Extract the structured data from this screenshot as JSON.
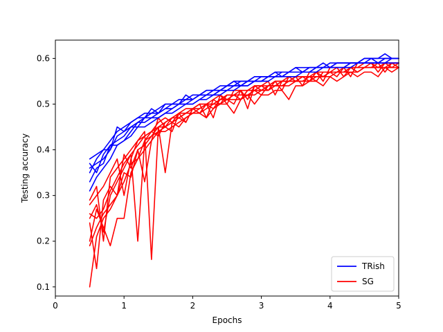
{
  "chart_data": {
    "type": "line",
    "title": "",
    "xlabel": "Epochs",
    "ylabel": "Testing accuracy",
    "xlim": [
      0,
      5
    ],
    "ylim": [
      0.08,
      0.64
    ],
    "xticks": [
      0,
      1,
      2,
      3,
      4,
      5
    ],
    "yticks": [
      0.1,
      0.2,
      0.3,
      0.4,
      0.5,
      0.6
    ],
    "grid": false,
    "legend_position": "bottom-right",
    "x": [
      0.5,
      0.6,
      0.7,
      0.8,
      0.9,
      1.0,
      1.1,
      1.2,
      1.3,
      1.4,
      1.5,
      1.6,
      1.7,
      1.8,
      1.9,
      2.0,
      2.1,
      2.2,
      2.3,
      2.4,
      2.5,
      2.6,
      2.7,
      2.8,
      2.9,
      3.0,
      3.1,
      3.2,
      3.3,
      3.4,
      3.5,
      3.6,
      3.7,
      3.8,
      3.9,
      4.0,
      4.1,
      4.2,
      4.3,
      4.4,
      4.5,
      4.6,
      4.7,
      4.8,
      4.9,
      5.0
    ],
    "series": [
      {
        "name": "TRish",
        "color": "#0000ff",
        "values": [
          0.37,
          0.35,
          0.39,
          0.41,
          0.42,
          0.43,
          0.45,
          0.46,
          0.47,
          0.48,
          0.48,
          0.49,
          0.5,
          0.5,
          0.51,
          0.51,
          0.52,
          0.52,
          0.53,
          0.53,
          0.54,
          0.54,
          0.55,
          0.55,
          0.55,
          0.56,
          0.56,
          0.56,
          0.56,
          0.57,
          0.57,
          0.57,
          0.57,
          0.58,
          0.58,
          0.58,
          0.58,
          0.58,
          0.59,
          0.59,
          0.59,
          0.59,
          0.59,
          0.6,
          0.6,
          0.6
        ]
      },
      {
        "values": [
          0.36,
          0.37,
          0.38,
          0.4,
          0.43,
          0.44,
          0.45,
          0.45,
          0.47,
          0.47,
          0.48,
          0.49,
          0.49,
          0.5,
          0.5,
          0.51,
          0.52,
          0.52,
          0.52,
          0.53,
          0.54,
          0.54,
          0.54,
          0.55,
          0.55,
          0.55,
          0.56,
          0.56,
          0.57,
          0.57,
          0.57,
          0.57,
          0.58,
          0.58,
          0.58,
          0.58,
          0.59,
          0.59,
          0.59,
          0.59,
          0.59,
          0.6,
          0.6,
          0.6,
          0.6,
          0.6
        ],
        "color": "#0000ff"
      },
      {
        "values": [
          0.33,
          0.36,
          0.37,
          0.41,
          0.41,
          0.42,
          0.44,
          0.46,
          0.46,
          0.47,
          0.47,
          0.48,
          0.49,
          0.5,
          0.5,
          0.5,
          0.51,
          0.52,
          0.52,
          0.53,
          0.53,
          0.54,
          0.54,
          0.54,
          0.55,
          0.55,
          0.56,
          0.56,
          0.56,
          0.57,
          0.57,
          0.57,
          0.57,
          0.58,
          0.58,
          0.58,
          0.58,
          0.58,
          0.59,
          0.59,
          0.59,
          0.59,
          0.59,
          0.59,
          0.6,
          0.6
        ],
        "color": "#0000ff"
      },
      {
        "values": [
          0.38,
          0.39,
          0.4,
          0.42,
          0.44,
          0.45,
          0.46,
          0.47,
          0.48,
          0.48,
          0.49,
          0.5,
          0.5,
          0.51,
          0.51,
          0.52,
          0.52,
          0.53,
          0.53,
          0.54,
          0.54,
          0.55,
          0.55,
          0.55,
          0.56,
          0.56,
          0.56,
          0.57,
          0.57,
          0.57,
          0.58,
          0.58,
          0.58,
          0.58,
          0.58,
          0.59,
          0.59,
          0.59,
          0.59,
          0.59,
          0.6,
          0.6,
          0.6,
          0.61,
          0.6,
          0.6
        ],
        "color": "#0000ff"
      },
      {
        "values": [
          0.31,
          0.34,
          0.36,
          0.38,
          0.41,
          0.42,
          0.43,
          0.45,
          0.45,
          0.46,
          0.47,
          0.48,
          0.48,
          0.49,
          0.5,
          0.5,
          0.51,
          0.51,
          0.52,
          0.52,
          0.53,
          0.53,
          0.54,
          0.54,
          0.55,
          0.55,
          0.55,
          0.56,
          0.56,
          0.56,
          0.56,
          0.57,
          0.57,
          0.57,
          0.58,
          0.58,
          0.58,
          0.58,
          0.58,
          0.59,
          0.59,
          0.59,
          0.59,
          0.59,
          0.59,
          0.59
        ],
        "color": "#0000ff"
      },
      {
        "values": [
          0.35,
          0.38,
          0.4,
          0.4,
          0.45,
          0.44,
          0.46,
          0.47,
          0.47,
          0.49,
          0.48,
          0.5,
          0.5,
          0.5,
          0.52,
          0.51,
          0.52,
          0.53,
          0.53,
          0.53,
          0.54,
          0.55,
          0.54,
          0.55,
          0.56,
          0.56,
          0.56,
          0.57,
          0.56,
          0.57,
          0.58,
          0.57,
          0.58,
          0.58,
          0.59,
          0.58,
          0.59,
          0.59,
          0.59,
          0.59,
          0.6,
          0.6,
          0.59,
          0.6,
          0.6,
          0.6
        ],
        "color": "#0000ff"
      },
      {
        "name": "SG",
        "color": "#ff0000",
        "values": [
          0.28,
          0.3,
          0.32,
          0.35,
          0.38,
          0.3,
          0.38,
          0.42,
          0.43,
          0.44,
          0.46,
          0.47,
          0.46,
          0.48,
          0.49,
          0.49,
          0.5,
          0.5,
          0.51,
          0.5,
          0.52,
          0.52,
          0.51,
          0.53,
          0.54,
          0.53,
          0.54,
          0.55,
          0.55,
          0.55,
          0.56,
          0.56,
          0.56,
          0.55,
          0.57,
          0.57,
          0.56,
          0.58,
          0.58,
          0.58,
          0.59,
          0.59,
          0.58,
          0.59,
          0.59,
          0.59
        ]
      },
      {
        "values": [
          0.19,
          0.23,
          0.26,
          0.28,
          0.3,
          0.35,
          0.34,
          0.4,
          0.41,
          0.43,
          0.45,
          0.45,
          0.47,
          0.47,
          0.48,
          0.48,
          0.49,
          0.5,
          0.5,
          0.51,
          0.51,
          0.52,
          0.52,
          0.52,
          0.53,
          0.53,
          0.54,
          0.54,
          0.55,
          0.55,
          0.55,
          0.56,
          0.56,
          0.56,
          0.56,
          0.57,
          0.57,
          0.57,
          0.58,
          0.58,
          0.58,
          0.58,
          0.58,
          0.59,
          0.59,
          0.59
        ],
        "color": "#ff0000"
      },
      {
        "values": [
          0.1,
          0.21,
          0.25,
          0.27,
          0.3,
          0.33,
          0.37,
          0.38,
          0.4,
          0.42,
          0.44,
          0.44,
          0.45,
          0.46,
          0.47,
          0.48,
          0.48,
          0.49,
          0.5,
          0.5,
          0.51,
          0.51,
          0.51,
          0.52,
          0.52,
          0.53,
          0.53,
          0.54,
          0.54,
          0.54,
          0.55,
          0.55,
          0.55,
          0.56,
          0.56,
          0.56,
          0.57,
          0.57,
          0.57,
          0.57,
          0.58,
          0.58,
          0.58,
          0.58,
          0.58,
          0.58
        ],
        "color": "#ff0000"
      },
      {
        "values": [
          0.25,
          0.28,
          0.22,
          0.3,
          0.33,
          0.36,
          0.39,
          0.2,
          0.42,
          0.44,
          0.43,
          0.46,
          0.47,
          0.47,
          0.46,
          0.49,
          0.5,
          0.47,
          0.51,
          0.52,
          0.5,
          0.53,
          0.53,
          0.49,
          0.54,
          0.54,
          0.55,
          0.52,
          0.55,
          0.56,
          0.56,
          0.54,
          0.57,
          0.57,
          0.55,
          0.58,
          0.58,
          0.58,
          0.56,
          0.59,
          0.59,
          0.59,
          0.59,
          0.57,
          0.59,
          0.58
        ],
        "color": "#ff0000"
      },
      {
        "values": [
          0.29,
          0.32,
          0.2,
          0.34,
          0.36,
          0.38,
          0.4,
          0.42,
          0.44,
          0.16,
          0.45,
          0.46,
          0.47,
          0.48,
          0.48,
          0.49,
          0.49,
          0.5,
          0.5,
          0.51,
          0.52,
          0.52,
          0.53,
          0.53,
          0.53,
          0.54,
          0.54,
          0.55,
          0.55,
          0.55,
          0.56,
          0.56,
          0.56,
          0.57,
          0.57,
          0.57,
          0.57,
          0.58,
          0.58,
          0.58,
          0.58,
          0.58,
          0.59,
          0.59,
          0.59,
          0.59
        ],
        "color": "#ff0000"
      },
      {
        "values": [
          0.26,
          0.25,
          0.27,
          0.31,
          0.34,
          0.37,
          0.39,
          0.41,
          0.43,
          0.44,
          0.45,
          0.35,
          0.46,
          0.47,
          0.48,
          0.49,
          0.5,
          0.5,
          0.49,
          0.51,
          0.52,
          0.52,
          0.51,
          0.53,
          0.53,
          0.52,
          0.54,
          0.54,
          0.54,
          0.55,
          0.55,
          0.55,
          0.56,
          0.56,
          0.56,
          0.57,
          0.57,
          0.57,
          0.58,
          0.57,
          0.58,
          0.58,
          0.58,
          0.58,
          0.59,
          0.58
        ],
        "color": "#ff0000"
      },
      {
        "values": [
          0.2,
          0.27,
          0.23,
          0.19,
          0.25,
          0.25,
          0.35,
          0.38,
          0.42,
          0.43,
          0.44,
          0.45,
          0.46,
          0.45,
          0.47,
          0.48,
          0.48,
          0.47,
          0.49,
          0.5,
          0.5,
          0.48,
          0.51,
          0.52,
          0.5,
          0.52,
          0.52,
          0.53,
          0.53,
          0.51,
          0.54,
          0.54,
          0.55,
          0.55,
          0.54,
          0.56,
          0.55,
          0.56,
          0.57,
          0.56,
          0.57,
          0.57,
          0.56,
          0.58,
          0.57,
          0.58
        ],
        "color": "#ff0000"
      },
      {
        "values": [
          0.24,
          0.14,
          0.29,
          0.32,
          0.3,
          0.39,
          0.36,
          0.4,
          0.33,
          0.42,
          0.47,
          0.45,
          0.44,
          0.48,
          0.46,
          0.49,
          0.48,
          0.5,
          0.47,
          0.52,
          0.51,
          0.5,
          0.53,
          0.51,
          0.54,
          0.54,
          0.53,
          0.55,
          0.53,
          0.56,
          0.55,
          0.56,
          0.55,
          0.57,
          0.56,
          0.57,
          0.58,
          0.56,
          0.58,
          0.57,
          0.58,
          0.59,
          0.57,
          0.59,
          0.58,
          0.59
        ],
        "color": "#ff0000"
      }
    ]
  },
  "legend": {
    "items": [
      {
        "label": "TRish",
        "color": "#0000ff"
      },
      {
        "label": "SG",
        "color": "#ff0000"
      }
    ]
  }
}
